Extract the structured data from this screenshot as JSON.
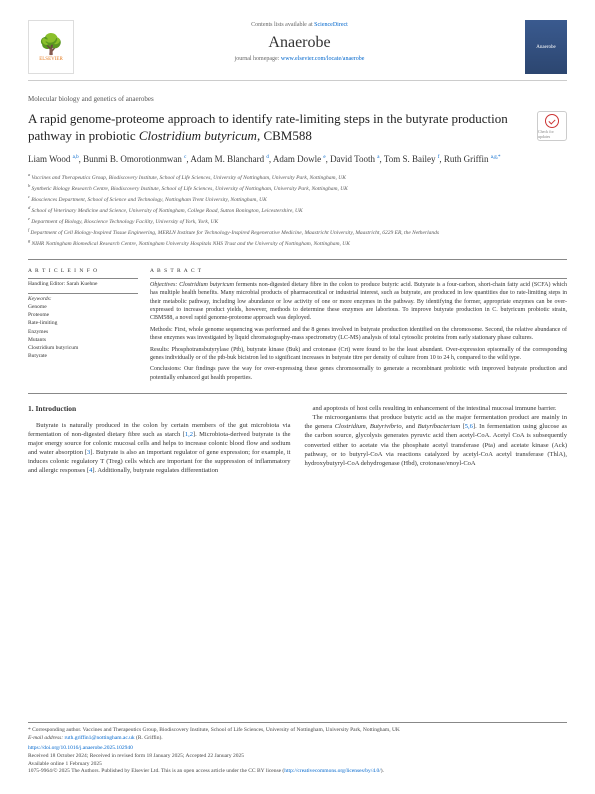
{
  "header": {
    "publisher": "ELSEVIER",
    "contents_prefix": "Contents lists available at ",
    "contents_link": "ScienceDirect",
    "journal": "Anaerobe",
    "homepage_prefix": "journal homepage: ",
    "homepage_url": "www.elsevier.com/locate/anaerobe",
    "cover_label": "Anaerobe"
  },
  "article": {
    "section": "Molecular biology and genetics of anaerobes",
    "title_pre": "A rapid genome-proteome approach to identify rate-limiting steps in the butyrate production pathway in probiotic ",
    "title_em": "Clostridium butyricum",
    "title_post": ", CBM588",
    "check_label": "Check for updates",
    "authors_html": "Liam Wood <sup>a,b</sup>, Bunmi B. Omorotionmwan <sup>c</sup>, Adam M. Blanchard <sup>d</sup>, Adam Dowle <sup>e</sup>, David Tooth <sup>a</sup>, Tom S. Bailey <sup>f</sup>, Ruth Griffin <sup>a,g,*</sup>",
    "affiliations": [
      "a Vaccines and Therapeutics Group, Biodiscovery Institute, School of Life Sciences, University of Nottingham, University Park, Nottingham, UK",
      "b Synthetic Biology Research Centre, Biodiscovery Institute, School of Life Sciences, University of Nottingham, University Park, Nottingham, UK",
      "c Biosciences Department, School of Science and Technology, Nottingham Trent University, Nottingham, UK",
      "d School of Veterinary Medicine and Science, University of Nottingham, College Road, Sutton Bonington, Leicestershire, UK",
      "e Department of Biology, Bioscience Technology Facility, University of York, York, UK",
      "f Department of Cell Biology-Inspired Tissue Engineering, MERLN Institute for Technology-Inspired Regenerative Medicine, Maastricht University, Maastricht, 6229 ER, the Netherlands",
      "g NIHR Nottingham Biomedical Research Centre, Nottingham University Hospitals NHS Trust and the University of Nottingham, Nottingham, UK"
    ]
  },
  "info": {
    "heading": "A R T I C L E  I N F O",
    "handling_label": "Handling Editor: Sarah Kuehne",
    "keywords_label": "Keywords:",
    "keywords": [
      "Genome",
      "Proteome",
      "Rate-limiting",
      "Enzymes",
      "Mutants",
      "Clostridium butyricum",
      "Butyrate"
    ]
  },
  "abstract": {
    "heading": "A B S T R A C T",
    "objectives": "Objectives: Clostridium butyricum ferments non-digested dietary fibre in the colon to produce butyric acid. Butyrate is a four-carbon, short-chain fatty acid (SCFA) which has multiple health benefits. Many microbial products of pharmaceutical or industrial interest, such as butyrate, are produced in low quantities due to rate-limiting steps in their metabolic pathway, including low abundance or low activity of one or more enzymes in the pathway. By identifying the former, appropriate enzymes can be over-expressed to increase product yields, however, methods to determine these enzymes are laborious. To improve butyrate production in C. butyricum probiotic strain, CBM588, a novel rapid genome-proteome approach was deployed.",
    "methods": "Methods: First, whole genome sequencing was performed and the 8 genes involved in butyrate production identified on the chromosome. Second, the relative abundance of these enzymes was investigated by liquid chromatography-mass spectrometry (LC-MS) analysis of total cytosolic proteins from early stationary phase cultures.",
    "results": "Results: Phosphotransbutyrylase (Ptb), butyrate kinase (Buk) and crotonase (Crt) were found to be the least abundant. Over-expression episomally of the corresponding genes individually or of the ptb-buk bicistron led to significant increases in butyrate titre per density of culture from 10 to 24 h, compared to the wild type.",
    "conclusions": "Conclusions: Our findings pave the way for over-expressing these genes chromosomally to generate a recombinant probiotic with improved butyrate production and potentially enhanced gut health properties."
  },
  "body": {
    "intro_heading": "1.  Introduction",
    "p1": "Butyrate is naturally produced in the colon by certain members of the gut microbiota via fermentation of non-digested dietary fibre such as starch [1,2]. Microbiota-derived butyrate is the major energy source for colonic mucosal cells and helps to increase colonic blood flow and sodium and water absorption [3]. Butyrate is also an important regulator of gene expression; for example, it induces colonic regulatory T (Treg) cells which are important for the suppression of inflammatory and allergic responses [4]. Additionally, butyrate regulates differentiation",
    "p2": "and apoptosis of host cells resulting in enhancement of the intestinal mucosal immune barrier.",
    "p3": "The microorganisms that produce butyric acid as the major fermentation product are mainly in the genera Clostridium, Butyrivibrio, and Butyribacterium [5,6]. In fermentation using glucose as the carbon source, glycolysis generates pyruvic acid then acetyl-CoA. Acetyl CoA is subsequently converted either to acetate via the phosphate acetyl transferase (Pta) and acetate kinase (Ack) pathway, or to butyryl-CoA via reactions catalyzed by acetyl-CoA acetyl transferase (ThlA), hydroxybutyryl-CoA dehydrogenase (Hbd), crotonase/enoyl-CoA"
  },
  "footer": {
    "corresponding": "* Corresponding author. Vaccines and Therapeutics Group, Biodiscovery Institute, School of Life Sciences, University of Nottingham, University Park, Nottingham, UK",
    "email_label": "E-mail address: ",
    "email": "ruth.griffin1@nottingham.ac.uk",
    "email_suffix": " (R. Griffin).",
    "doi": "https://doi.org/10.1016/j.anaerobe.2025.102940",
    "received": "Received 18 October 2024; Received in revised form 18 January 2025; Accepted 22 January 2025",
    "available": "Available online 1 February 2025",
    "copyright_pre": "1075-9964/© 2025 The Authors. Published by Elsevier Ltd. This is an open access article under the CC BY license (",
    "copyright_link": "http://creativecommons.org/licenses/by/4.0/",
    "copyright_post": ")."
  }
}
